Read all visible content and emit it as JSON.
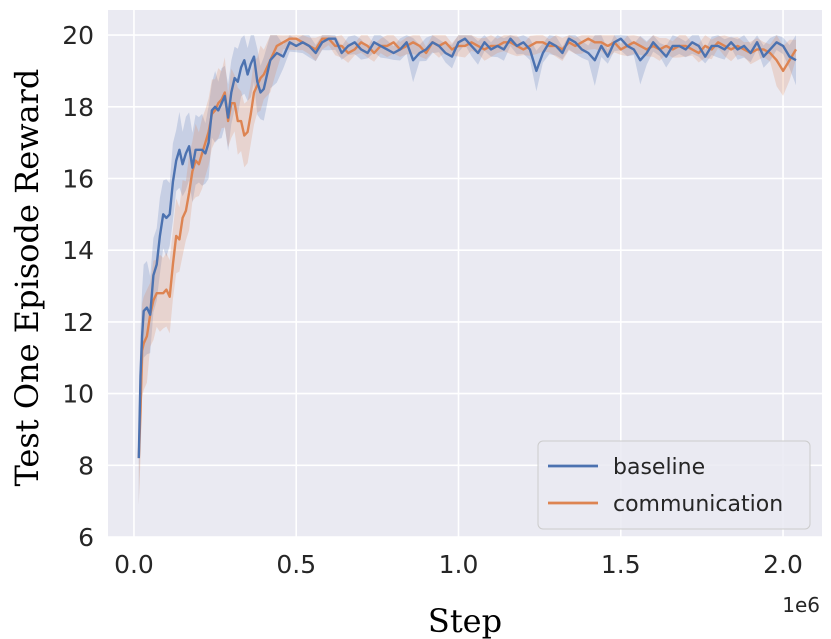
{
  "chart_data": {
    "type": "line",
    "title": "",
    "xlabel": "Step",
    "ylabel": "Test One Episode Reward",
    "x_offset_label": "1e6",
    "xlim": [
      -0.08,
      2.12
    ],
    "ylim": [
      6,
      20.7
    ],
    "xticks": [
      0.0,
      0.5,
      1.0,
      1.5,
      2.0
    ],
    "xtick_labels": [
      "0.0",
      "0.5",
      "1.0",
      "1.5",
      "2.0"
    ],
    "yticks": [
      6,
      8,
      10,
      12,
      14,
      16,
      18,
      20
    ],
    "ytick_labels": [
      "6",
      "8",
      "10",
      "12",
      "14",
      "16",
      "18",
      "20"
    ],
    "grid": true,
    "background": "#eaeaf2",
    "legend": {
      "position": "lower-right",
      "entries": [
        "baseline",
        "communication"
      ]
    },
    "series": [
      {
        "name": "baseline",
        "color": "#4c72b0",
        "x": [
          0.015,
          0.02,
          0.025,
          0.03,
          0.04,
          0.05,
          0.06,
          0.07,
          0.08,
          0.09,
          0.1,
          0.11,
          0.12,
          0.13,
          0.14,
          0.15,
          0.16,
          0.17,
          0.18,
          0.19,
          0.2,
          0.21,
          0.22,
          0.23,
          0.24,
          0.25,
          0.26,
          0.27,
          0.28,
          0.29,
          0.3,
          0.31,
          0.32,
          0.33,
          0.34,
          0.35,
          0.36,
          0.37,
          0.38,
          0.39,
          0.4,
          0.42,
          0.44,
          0.46,
          0.48,
          0.5,
          0.52,
          0.54,
          0.56,
          0.58,
          0.6,
          0.62,
          0.64,
          0.66,
          0.68,
          0.7,
          0.72,
          0.74,
          0.76,
          0.78,
          0.8,
          0.82,
          0.84,
          0.86,
          0.88,
          0.9,
          0.92,
          0.94,
          0.96,
          0.98,
          1.0,
          1.02,
          1.04,
          1.06,
          1.08,
          1.1,
          1.12,
          1.14,
          1.16,
          1.18,
          1.2,
          1.22,
          1.24,
          1.26,
          1.28,
          1.3,
          1.32,
          1.34,
          1.36,
          1.38,
          1.4,
          1.42,
          1.44,
          1.46,
          1.48,
          1.5,
          1.52,
          1.54,
          1.56,
          1.58,
          1.6,
          1.62,
          1.64,
          1.66,
          1.68,
          1.7,
          1.72,
          1.74,
          1.76,
          1.78,
          1.8,
          1.82,
          1.84,
          1.86,
          1.88,
          1.9,
          1.92,
          1.94,
          1.96,
          1.98,
          2.0,
          2.02,
          2.04
        ],
        "y": [
          8.2,
          10.5,
          11.6,
          12.3,
          12.4,
          12.2,
          13.3,
          13.6,
          14.4,
          15.0,
          14.9,
          15.0,
          15.9,
          16.5,
          16.8,
          16.4,
          16.7,
          16.9,
          16.3,
          16.8,
          16.8,
          16.8,
          16.7,
          17.0,
          17.9,
          18.0,
          17.9,
          18.1,
          18.3,
          17.7,
          18.4,
          18.8,
          18.7,
          19.1,
          19.3,
          18.9,
          19.2,
          19.4,
          18.7,
          18.4,
          18.5,
          19.3,
          19.5,
          19.4,
          19.8,
          19.7,
          19.8,
          19.7,
          19.5,
          19.8,
          19.9,
          19.9,
          19.5,
          19.7,
          19.8,
          19.6,
          19.5,
          19.8,
          19.7,
          19.6,
          19.5,
          19.6,
          19.8,
          19.3,
          19.5,
          19.6,
          19.8,
          19.7,
          19.5,
          19.4,
          19.8,
          19.9,
          19.7,
          19.5,
          19.8,
          19.6,
          19.7,
          19.6,
          19.9,
          19.7,
          19.8,
          19.6,
          19.0,
          19.5,
          19.8,
          19.7,
          19.5,
          19.9,
          19.8,
          19.6,
          19.5,
          19.3,
          19.7,
          19.4,
          19.8,
          19.9,
          19.7,
          19.6,
          19.3,
          19.5,
          19.8,
          19.6,
          19.4,
          19.7,
          19.7,
          19.6,
          19.8,
          19.7,
          19.4,
          19.7,
          19.7,
          19.6,
          19.8,
          19.6,
          19.7,
          19.5,
          19.8,
          19.4,
          19.6,
          19.8,
          19.7,
          19.4,
          19.3
        ]
      },
      {
        "name": "communication",
        "color": "#dd8452",
        "x": [
          0.015,
          0.02,
          0.025,
          0.03,
          0.04,
          0.05,
          0.06,
          0.07,
          0.08,
          0.09,
          0.1,
          0.11,
          0.12,
          0.13,
          0.14,
          0.15,
          0.16,
          0.17,
          0.18,
          0.19,
          0.2,
          0.21,
          0.22,
          0.23,
          0.24,
          0.25,
          0.26,
          0.27,
          0.28,
          0.29,
          0.3,
          0.31,
          0.32,
          0.33,
          0.34,
          0.35,
          0.36,
          0.37,
          0.38,
          0.39,
          0.4,
          0.42,
          0.44,
          0.46,
          0.48,
          0.5,
          0.52,
          0.54,
          0.56,
          0.58,
          0.6,
          0.62,
          0.64,
          0.66,
          0.68,
          0.7,
          0.72,
          0.74,
          0.76,
          0.78,
          0.8,
          0.82,
          0.84,
          0.86,
          0.88,
          0.9,
          0.92,
          0.94,
          0.96,
          0.98,
          1.0,
          1.02,
          1.04,
          1.06,
          1.08,
          1.1,
          1.12,
          1.14,
          1.16,
          1.18,
          1.2,
          1.22,
          1.24,
          1.26,
          1.28,
          1.3,
          1.32,
          1.34,
          1.36,
          1.38,
          1.4,
          1.42,
          1.44,
          1.46,
          1.48,
          1.5,
          1.52,
          1.54,
          1.56,
          1.58,
          1.6,
          1.62,
          1.64,
          1.66,
          1.68,
          1.7,
          1.72,
          1.74,
          1.76,
          1.78,
          1.8,
          1.82,
          1.84,
          1.86,
          1.88,
          1.9,
          1.92,
          1.94,
          1.96,
          1.98,
          2.0,
          2.02,
          2.04
        ],
        "y": [
          8.2,
          9.5,
          11.2,
          11.4,
          11.6,
          12.2,
          12.6,
          12.8,
          12.8,
          12.8,
          12.9,
          12.7,
          13.6,
          14.4,
          14.3,
          14.9,
          15.1,
          15.6,
          16.2,
          16.5,
          16.4,
          16.7,
          17.0,
          17.3,
          17.8,
          17.9,
          18.1,
          18.2,
          18.4,
          17.6,
          18.1,
          18.1,
          17.6,
          17.6,
          17.2,
          17.3,
          17.8,
          18.4,
          18.6,
          18.8,
          18.9,
          19.3,
          19.7,
          19.8,
          19.9,
          19.9,
          19.8,
          19.7,
          19.6,
          19.9,
          19.9,
          19.7,
          19.7,
          19.5,
          19.6,
          19.8,
          19.7,
          19.5,
          19.7,
          19.7,
          19.8,
          19.6,
          19.7,
          19.8,
          19.7,
          19.5,
          19.8,
          19.7,
          19.8,
          19.6,
          19.7,
          19.7,
          19.8,
          19.7,
          19.6,
          19.7,
          19.7,
          19.8,
          19.8,
          19.7,
          19.6,
          19.7,
          19.8,
          19.8,
          19.7,
          19.7,
          19.6,
          19.8,
          19.7,
          19.8,
          19.9,
          19.8,
          19.8,
          19.7,
          19.8,
          19.6,
          19.7,
          19.8,
          19.7,
          19.6,
          19.7,
          19.6,
          19.7,
          19.6,
          19.7,
          19.7,
          19.6,
          19.5,
          19.7,
          19.6,
          19.8,
          19.7,
          19.6,
          19.7,
          19.6,
          19.5,
          19.6,
          19.6,
          19.5,
          19.3,
          19.0,
          19.3,
          19.6
        ]
      }
    ]
  }
}
